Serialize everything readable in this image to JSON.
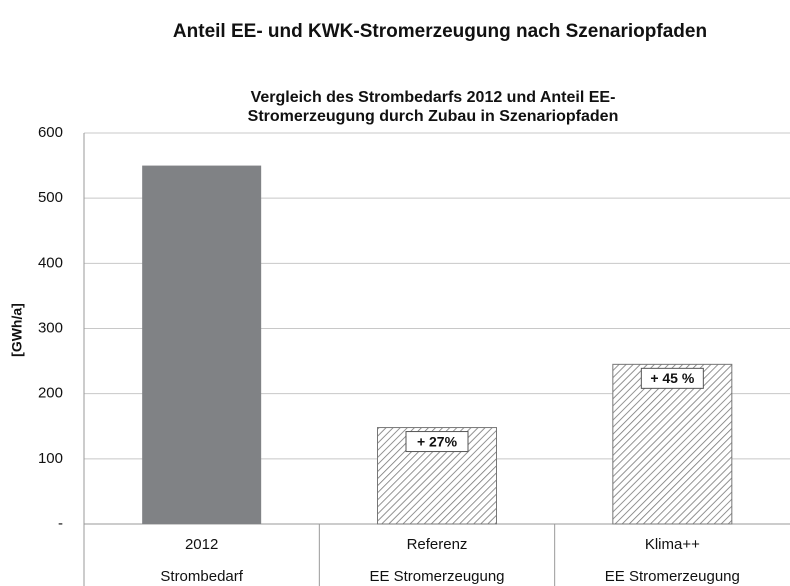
{
  "page_title": "Anteil EE- und KWK-Stromerzeugung nach Szenariopfaden",
  "chart_data": {
    "type": "bar",
    "title": [
      "Vergleich  des Strombedarfs 2012 und Anteil EE-",
      "Stromerzeugung durch Zubau in Szenariopfaden"
    ],
    "y_label": "[GWh/a]",
    "categories": [
      [
        "2012",
        "Strombedarf"
      ],
      [
        "Referenz",
        "EE Stromerzeugung"
      ],
      [
        "Klima++",
        "EE Stromerzeugung"
      ]
    ],
    "values": [
      550,
      148,
      245
    ],
    "colors": [
      "#808285",
      "hatch",
      "hatch"
    ],
    "annotations": [
      {
        "category": "Referenz",
        "text": "+ 27%"
      },
      {
        "category": "Klima++",
        "text": "+ 45 %"
      }
    ],
    "ylim": [
      0,
      600
    ],
    "yticks": [
      {
        "value": 0,
        "label": "-"
      },
      100,
      200,
      300,
      400,
      500,
      600
    ],
    "grid": true
  }
}
